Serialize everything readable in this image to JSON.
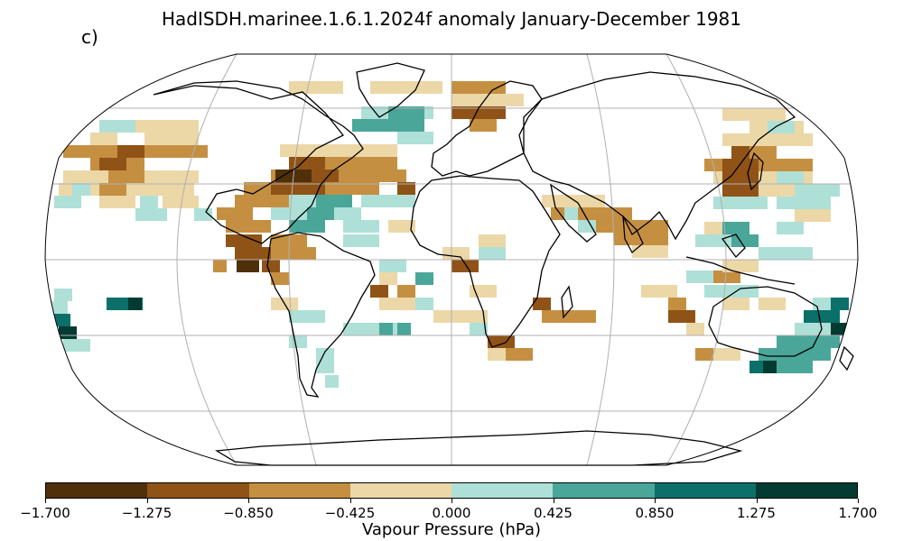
{
  "title": "HadISDH.marinee.1.6.1.2024f anomaly January-December 1981",
  "panel_label": "c)",
  "colorbar": {
    "label": "Vapour Pressure (hPa)",
    "ticks": [
      "−1.700",
      "−1.275",
      "−0.850",
      "−0.425",
      "0.000",
      "0.425",
      "0.850",
      "1.275",
      "1.700"
    ],
    "colors": [
      "#4f300b",
      "#8f5317",
      "#c58f42",
      "#ecd7a7",
      "#aee0d7",
      "#4aa699",
      "#0a7069",
      "#033b32"
    ]
  },
  "map": {
    "projection": "Robinson",
    "graticule": true
  }
}
